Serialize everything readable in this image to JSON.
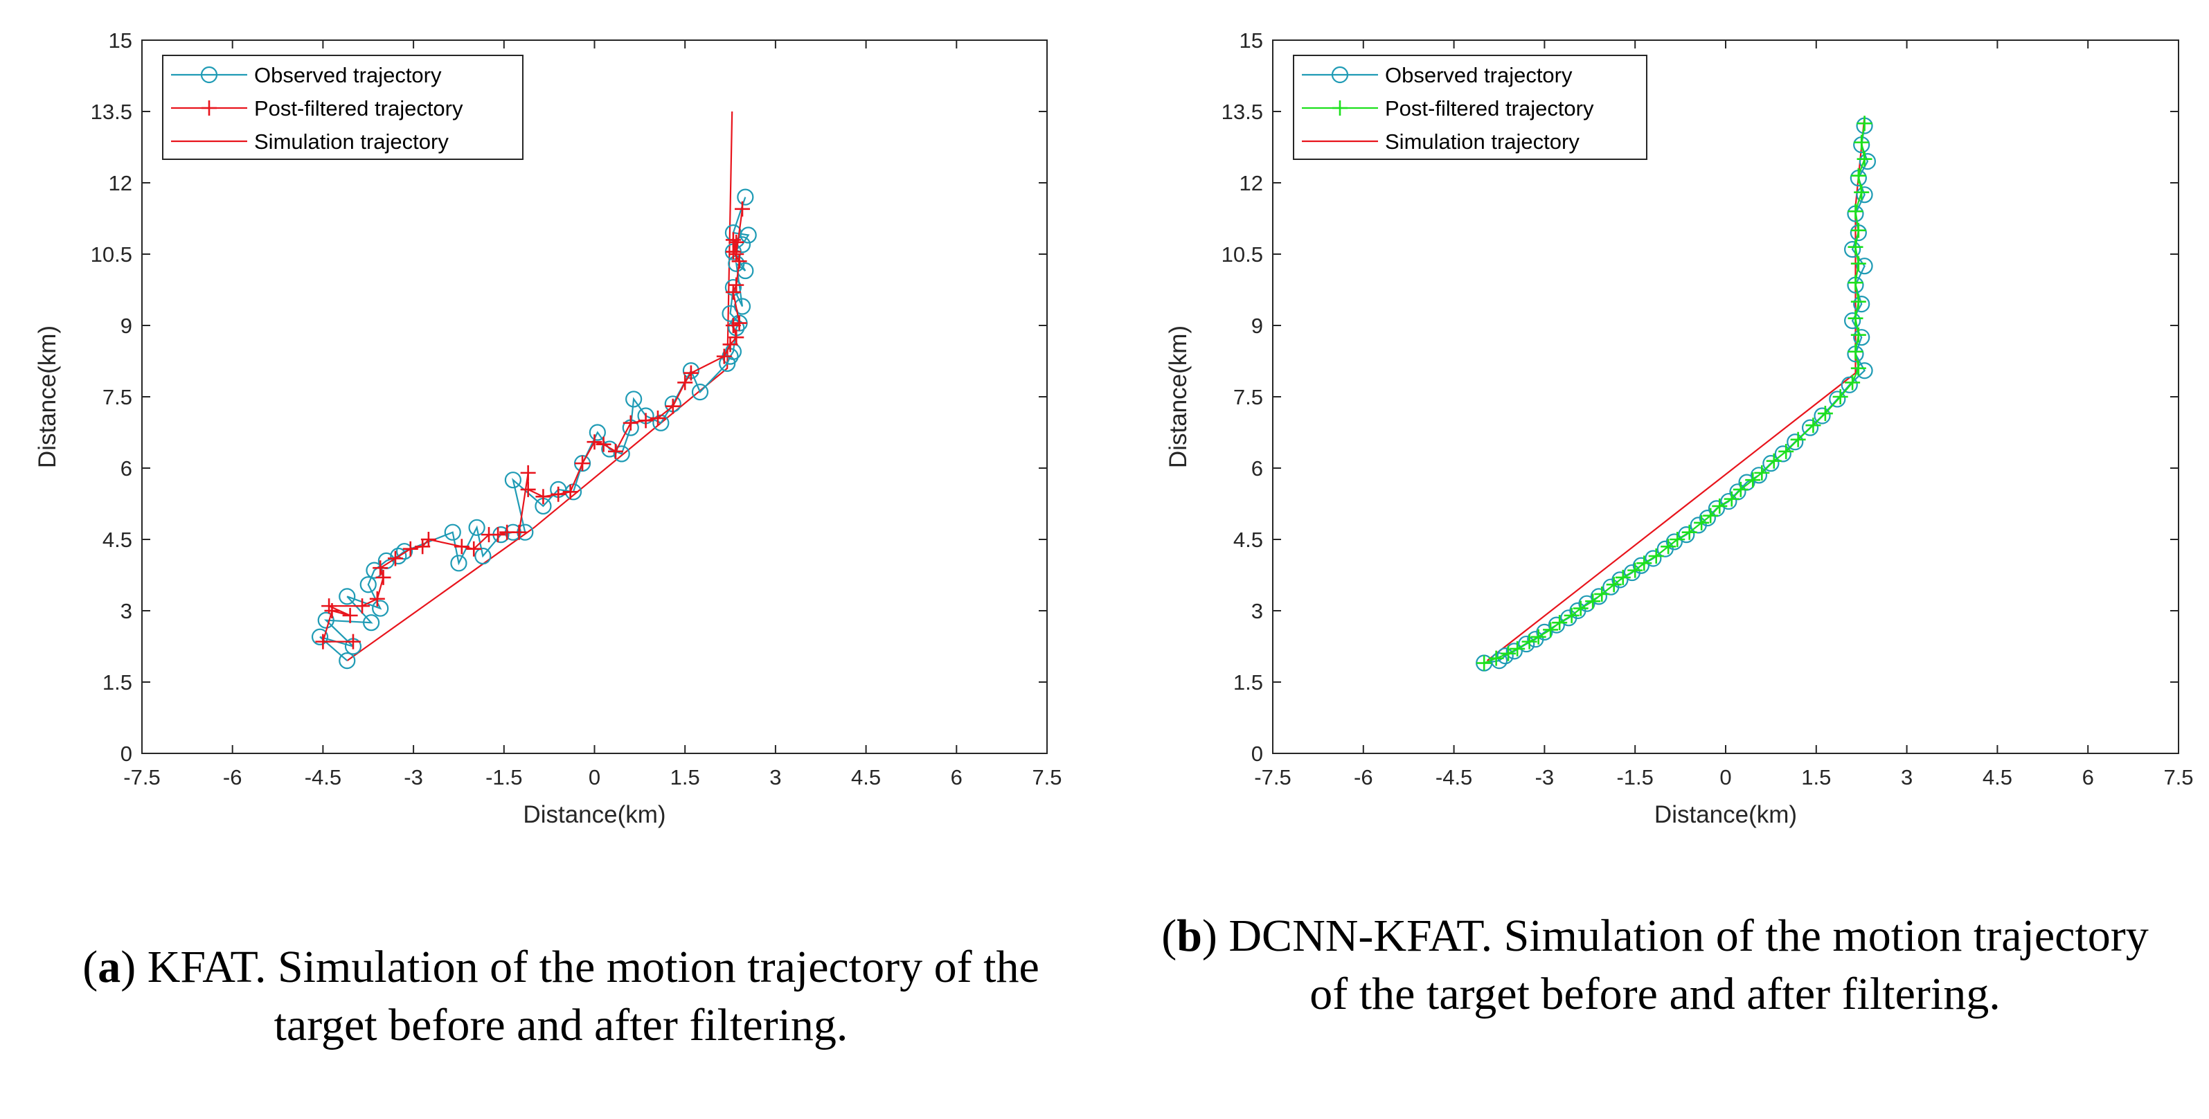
{
  "captions": {
    "a": {
      "letter": "a",
      "text": "KFAT. Simulation of the motion trajectory of the target before and after filtering."
    },
    "b": {
      "letter": "b",
      "text": "DCNN-KFAT. Simulation of the motion trajectory of the target before and after filtering."
    }
  },
  "chart_data": [
    {
      "type": "line",
      "xlabel": "Distance(km)",
      "ylabel": "Distance(km)",
      "xlim": [
        -7.5,
        7.5
      ],
      "ylim": [
        0,
        15
      ],
      "xticks": [
        "-7.5",
        "-6",
        "-4.5",
        "-3",
        "-1.5",
        "0",
        "1.5",
        "3",
        "4.5",
        "6",
        "7.5"
      ],
      "yticks": [
        "0",
        "1.5",
        "3",
        "4.5",
        "6",
        "7.5",
        "9",
        "10.5",
        "12",
        "13.5",
        "15"
      ],
      "legend_position": "top-left",
      "series": [
        {
          "name": "Observed trajectory",
          "color": "#1f9bb5",
          "marker": "circle",
          "x": [
            -4.1,
            -4.55,
            -4.0,
            -4.45,
            -3.7,
            -4.1,
            -3.55,
            -3.75,
            -3.65,
            -3.45,
            -3.25,
            -3.15,
            -2.35,
            -2.25,
            -1.95,
            -1.85,
            -1.55,
            -1.35,
            -1.15,
            -1.35,
            -0.85,
            -0.6,
            -0.35,
            -0.2,
            0.05,
            0.25,
            0.45,
            0.6,
            0.65,
            0.85,
            1.1,
            1.3,
            1.6,
            1.75,
            2.2,
            2.25,
            2.3,
            2.35,
            2.4,
            2.25,
            2.3,
            2.45,
            2.35,
            2.5,
            2.3,
            2.45,
            2.55,
            2.3,
            2.5
          ],
          "y": [
            1.95,
            2.45,
            2.25,
            2.8,
            2.75,
            3.3,
            3.05,
            3.55,
            3.85,
            4.05,
            4.15,
            4.25,
            4.65,
            4.0,
            4.75,
            4.15,
            4.6,
            4.65,
            4.65,
            5.75,
            5.2,
            5.55,
            5.5,
            6.1,
            6.75,
            6.4,
            6.3,
            6.85,
            7.45,
            7.1,
            6.95,
            7.35,
            8.05,
            7.6,
            8.2,
            8.35,
            8.45,
            8.95,
            9.05,
            9.25,
            9.8,
            9.4,
            10.3,
            10.15,
            10.55,
            10.7,
            10.9,
            10.95,
            11.7
          ]
        },
        {
          "name": "Post-filtered trajectory",
          "color": "#e8141c",
          "marker": "plus",
          "x": [
            -4.0,
            -4.5,
            -4.35,
            -4.05,
            -4.4,
            -3.85,
            -3.6,
            -3.5,
            -3.55,
            -3.3,
            -3.05,
            -2.85,
            -2.75,
            -2.2,
            -2.0,
            -1.75,
            -1.6,
            -1.45,
            -1.25,
            -1.1,
            -1.1,
            -0.85,
            -0.6,
            -0.4,
            -0.2,
            0.0,
            0.15,
            0.35,
            0.6,
            0.85,
            1.05,
            1.3,
            1.5,
            1.6,
            2.15,
            2.25,
            2.35,
            2.3,
            2.4,
            2.3,
            2.35,
            2.4,
            2.3,
            2.35,
            2.3,
            2.35,
            2.45
          ],
          "y": [
            2.35,
            2.35,
            3.0,
            2.9,
            3.1,
            3.1,
            3.25,
            3.7,
            3.9,
            4.1,
            4.3,
            4.35,
            4.5,
            4.35,
            4.3,
            4.6,
            4.6,
            4.65,
            4.65,
            5.9,
            5.55,
            5.4,
            5.45,
            5.5,
            6.1,
            6.55,
            6.5,
            6.35,
            6.95,
            7.0,
            7.05,
            7.3,
            7.8,
            8.0,
            8.35,
            8.6,
            8.75,
            9.0,
            9.05,
            9.7,
            9.85,
            10.35,
            10.55,
            10.75,
            10.8,
            10.5,
            11.45
          ]
        },
        {
          "name": "Simulation trajectory",
          "color": "#e8141c",
          "marker": "none",
          "x": [
            -4.1,
            -1.0,
            2.2,
            2.28
          ],
          "y": [
            1.95,
            4.75,
            8.1,
            13.5
          ]
        }
      ]
    },
    {
      "type": "line",
      "xlabel": "Distance(km)",
      "ylabel": "Distance(km)",
      "xlim": [
        -7.5,
        7.5
      ],
      "ylim": [
        0,
        15
      ],
      "xticks": [
        "-7.5",
        "-6",
        "-4.5",
        "-3",
        "-1.5",
        "0",
        "1.5",
        "3",
        "4.5",
        "6",
        "7.5"
      ],
      "yticks": [
        "0",
        "1.5",
        "3",
        "4.5",
        "6",
        "7.5",
        "9",
        "10.5",
        "12",
        "13.5",
        "15"
      ],
      "legend_position": "top-left",
      "series": [
        {
          "name": "Observed trajectory",
          "color": "#1f9bb5",
          "marker": "circle",
          "x": [
            -4.0,
            -3.75,
            -3.65,
            -3.5,
            -3.3,
            -3.15,
            -3.0,
            -2.8,
            -2.6,
            -2.45,
            -2.3,
            -2.1,
            -1.9,
            -1.75,
            -1.55,
            -1.4,
            -1.2,
            -1.0,
            -0.85,
            -0.65,
            -0.45,
            -0.3,
            -0.15,
            0.05,
            0.2,
            0.35,
            0.55,
            0.75,
            0.95,
            1.15,
            1.4,
            1.6,
            1.85,
            2.05,
            2.3,
            2.15,
            2.25,
            2.1,
            2.25,
            2.15,
            2.3,
            2.1,
            2.2,
            2.15,
            2.3,
            2.2,
            2.35,
            2.25,
            2.3
          ],
          "y": [
            1.9,
            1.95,
            2.05,
            2.15,
            2.3,
            2.4,
            2.55,
            2.7,
            2.85,
            3.0,
            3.15,
            3.3,
            3.5,
            3.65,
            3.8,
            3.95,
            4.1,
            4.3,
            4.45,
            4.6,
            4.8,
            4.95,
            5.15,
            5.3,
            5.5,
            5.7,
            5.85,
            6.1,
            6.3,
            6.55,
            6.85,
            7.1,
            7.45,
            7.75,
            8.05,
            8.4,
            8.75,
            9.1,
            9.45,
            9.85,
            10.25,
            10.6,
            10.95,
            11.35,
            11.75,
            12.1,
            12.45,
            12.8,
            13.2
          ]
        },
        {
          "name": "Post-filtered trajectory",
          "color": "#1de01d",
          "marker": "plus",
          "x": [
            -4.0,
            -3.8,
            -3.6,
            -3.45,
            -3.25,
            -3.1,
            -2.9,
            -2.75,
            -2.55,
            -2.4,
            -2.2,
            -2.05,
            -1.85,
            -1.7,
            -1.5,
            -1.35,
            -1.15,
            -0.95,
            -0.8,
            -0.6,
            -0.4,
            -0.25,
            -0.1,
            0.1,
            0.25,
            0.45,
            0.6,
            0.8,
            1.0,
            1.2,
            1.45,
            1.65,
            1.9,
            2.1,
            2.2,
            2.15,
            2.2,
            2.15,
            2.2,
            2.15,
            2.2,
            2.15,
            2.2,
            2.15,
            2.25,
            2.2,
            2.3,
            2.25,
            2.3
          ],
          "y": [
            1.9,
            2.0,
            2.1,
            2.2,
            2.35,
            2.45,
            2.6,
            2.75,
            2.9,
            3.05,
            3.2,
            3.35,
            3.55,
            3.7,
            3.85,
            4.0,
            4.15,
            4.35,
            4.5,
            4.65,
            4.85,
            5.0,
            5.2,
            5.35,
            5.55,
            5.75,
            5.9,
            6.15,
            6.35,
            6.6,
            6.9,
            7.15,
            7.5,
            7.8,
            8.1,
            8.45,
            8.8,
            9.15,
            9.5,
            9.9,
            10.3,
            10.65,
            11.0,
            11.4,
            11.8,
            12.15,
            12.5,
            12.85,
            13.25
          ]
        },
        {
          "name": "Simulation trajectory",
          "color": "#e8141c",
          "marker": "none",
          "x": [
            -3.95,
            2.15,
            2.15,
            2.3
          ],
          "y": [
            1.95,
            8.0,
            11.5,
            13.4
          ]
        }
      ]
    }
  ]
}
